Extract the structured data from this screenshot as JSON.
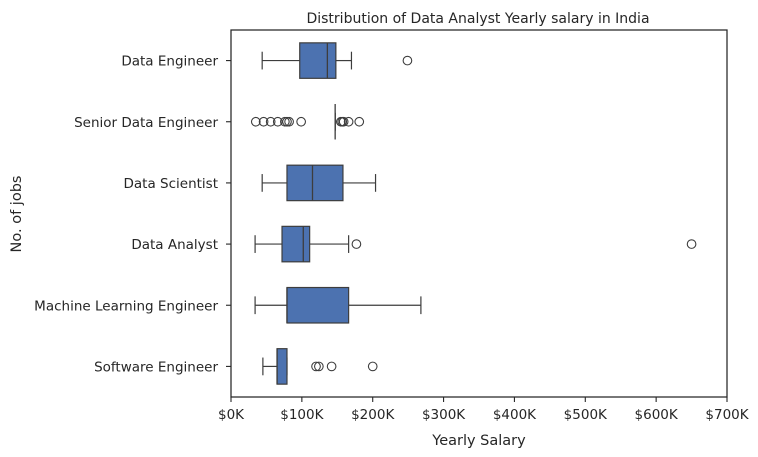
{
  "chart_data": {
    "type": "boxplot",
    "orientation": "horizontal",
    "title": "Distribution of Data Analyst Yearly salary in India",
    "xlabel": "Yearly Salary",
    "ylabel": "No. of jobs",
    "xlim": [
      0,
      700000
    ],
    "xticks": [
      0,
      100000,
      200000,
      300000,
      400000,
      500000,
      600000,
      700000
    ],
    "xtick_labels": [
      "$0K",
      "$100K",
      "$200K",
      "$300K",
      "$400K",
      "$500K",
      "$600K",
      "$700K"
    ],
    "grid": false,
    "legend": "none",
    "box_color": "#4c72b0",
    "line_color": "#3d3d3d",
    "categories": [
      "Data Engineer",
      "Senior Data Engineer",
      "Data Scientist",
      "Data Analyst",
      "Machine Learning Engineer",
      "Software Engineer"
    ],
    "boxes": [
      {
        "category": "Data Engineer",
        "whisker_low": 44000,
        "q1": 97000,
        "median": 136000,
        "q3": 148000,
        "whisker_high": 170000,
        "outliers": [
          249000
        ]
      },
      {
        "category": "Senior Data Engineer",
        "whisker_low": 147000,
        "q1": 147000,
        "median": 147000,
        "q3": 147000,
        "whisker_high": 147000,
        "outliers": [
          35000,
          46000,
          56000,
          66000,
          76000,
          79000,
          82000,
          99000,
          155000,
          157000,
          159000,
          166000,
          181000
        ]
      },
      {
        "category": "Data Scientist",
        "whisker_low": 44000,
        "q1": 79000,
        "median": 115000,
        "q3": 158000,
        "whisker_high": 204000,
        "outliers": []
      },
      {
        "category": "Data Analyst",
        "whisker_low": 34000,
        "q1": 72000,
        "median": 102000,
        "q3": 111000,
        "whisker_high": 166000,
        "outliers": [
          177000,
          650000
        ]
      },
      {
        "category": "Machine Learning Engineer",
        "whisker_low": 34000,
        "q1": 79000,
        "median": 79000,
        "q3": 166000,
        "whisker_high": 268000,
        "outliers": []
      },
      {
        "category": "Software Engineer",
        "whisker_low": 45000,
        "q1": 65000,
        "median": 65000,
        "q3": 79000,
        "whisker_high": 79000,
        "outliers": [
          120000,
          124000,
          142000,
          200000
        ]
      }
    ]
  }
}
